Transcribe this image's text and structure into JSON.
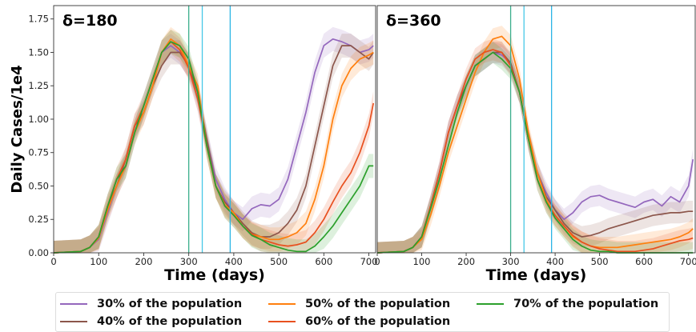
{
  "chart_data": [
    {
      "type": "line",
      "panel_title": "δ=180",
      "xlabel": "Time (days)",
      "ylabel": "Daily Cases/1e4",
      "xlim": [
        0,
        715
      ],
      "ylim": [
        0,
        1.85
      ],
      "xticks": [
        "0",
        "100",
        "200",
        "300",
        "400",
        "500",
        "600",
        "700"
      ],
      "yticks": [
        "0.00",
        "0.25",
        "0.50",
        "0.75",
        "1.00",
        "1.25",
        "1.50",
        "1.75"
      ],
      "vlines": [
        {
          "x": 300,
          "color": "#3aae8c"
        },
        {
          "x": 330,
          "color": "#47c8e8"
        },
        {
          "x": 392,
          "color": "#2ab5e5"
        }
      ],
      "series": [
        {
          "name": "30% of the population",
          "color": "#9467bd",
          "band": 0.09,
          "x": [
            0,
            60,
            80,
            100,
            120,
            140,
            160,
            180,
            200,
            220,
            240,
            260,
            280,
            300,
            320,
            340,
            360,
            380,
            400,
            420,
            440,
            460,
            480,
            500,
            520,
            540,
            560,
            580,
            600,
            620,
            640,
            660,
            680,
            700,
            710
          ],
          "y": [
            0,
            0.01,
            0.04,
            0.1,
            0.3,
            0.5,
            0.65,
            0.9,
            1.1,
            1.3,
            1.5,
            1.55,
            1.5,
            1.4,
            1.15,
            0.85,
            0.55,
            0.4,
            0.3,
            0.25,
            0.33,
            0.36,
            0.35,
            0.4,
            0.55,
            0.8,
            1.05,
            1.35,
            1.55,
            1.6,
            1.58,
            1.55,
            1.5,
            1.52,
            1.55
          ]
        },
        {
          "name": "40% of the population",
          "color": "#8c564b",
          "band": 0.09,
          "x": [
            0,
            60,
            80,
            100,
            120,
            140,
            160,
            180,
            200,
            220,
            240,
            260,
            280,
            300,
            320,
            340,
            360,
            380,
            400,
            420,
            440,
            460,
            480,
            500,
            520,
            540,
            560,
            580,
            600,
            620,
            640,
            660,
            680,
            700,
            710
          ],
          "y": [
            0,
            0.01,
            0.04,
            0.12,
            0.35,
            0.5,
            0.7,
            0.95,
            1.05,
            1.25,
            1.4,
            1.5,
            1.5,
            1.4,
            1.2,
            0.85,
            0.5,
            0.38,
            0.3,
            0.22,
            0.15,
            0.12,
            0.12,
            0.15,
            0.22,
            0.32,
            0.5,
            0.8,
            1.1,
            1.4,
            1.55,
            1.55,
            1.5,
            1.45,
            1.5
          ]
        },
        {
          "name": "50% of the population",
          "color": "#ff7f0e",
          "band": 0.09,
          "x": [
            0,
            60,
            80,
            100,
            120,
            140,
            160,
            180,
            200,
            220,
            240,
            260,
            280,
            300,
            320,
            340,
            360,
            380,
            400,
            420,
            440,
            460,
            480,
            500,
            520,
            540,
            560,
            580,
            600,
            620,
            640,
            660,
            680,
            700,
            710
          ],
          "y": [
            0,
            0.01,
            0.04,
            0.11,
            0.32,
            0.5,
            0.65,
            0.9,
            1.05,
            1.25,
            1.5,
            1.6,
            1.55,
            1.4,
            1.25,
            0.8,
            0.5,
            0.36,
            0.3,
            0.2,
            0.14,
            0.12,
            0.1,
            0.1,
            0.12,
            0.15,
            0.22,
            0.4,
            0.65,
            1.0,
            1.25,
            1.38,
            1.45,
            1.48,
            1.5
          ]
        },
        {
          "name": "60% of the population",
          "color": "#e8501f",
          "band": 0.09,
          "x": [
            0,
            60,
            80,
            100,
            120,
            140,
            160,
            180,
            200,
            220,
            240,
            260,
            280,
            300,
            320,
            340,
            360,
            380,
            400,
            420,
            440,
            460,
            480,
            500,
            520,
            540,
            560,
            580,
            600,
            620,
            640,
            660,
            680,
            700,
            710
          ],
          "y": [
            0,
            0.01,
            0.04,
            0.12,
            0.35,
            0.55,
            0.7,
            0.95,
            1.1,
            1.3,
            1.5,
            1.58,
            1.52,
            1.38,
            1.15,
            0.8,
            0.5,
            0.35,
            0.28,
            0.2,
            0.14,
            0.1,
            0.08,
            0.06,
            0.05,
            0.06,
            0.08,
            0.15,
            0.25,
            0.38,
            0.5,
            0.6,
            0.75,
            0.95,
            1.12
          ]
        },
        {
          "name": "70% of the population",
          "color": "#2ca02c",
          "band": 0.09,
          "x": [
            0,
            60,
            80,
            100,
            120,
            140,
            160,
            180,
            200,
            220,
            240,
            260,
            280,
            300,
            320,
            340,
            360,
            380,
            400,
            420,
            440,
            460,
            480,
            500,
            520,
            540,
            560,
            580,
            600,
            620,
            640,
            660,
            680,
            700,
            710
          ],
          "y": [
            0,
            0.01,
            0.04,
            0.12,
            0.35,
            0.55,
            0.65,
            0.9,
            1.1,
            1.3,
            1.5,
            1.58,
            1.55,
            1.45,
            1.2,
            0.8,
            0.5,
            0.35,
            0.28,
            0.2,
            0.13,
            0.1,
            0.06,
            0.04,
            0.02,
            0.01,
            0.01,
            0.05,
            0.12,
            0.2,
            0.3,
            0.4,
            0.5,
            0.65,
            0.65
          ]
        }
      ]
    },
    {
      "type": "line",
      "panel_title": "δ=360",
      "xlabel": "Time (days)",
      "ylabel": "",
      "xlim": [
        0,
        715
      ],
      "ylim": [
        0,
        1.85
      ],
      "xticks": [
        "0",
        "100",
        "200",
        "300",
        "400",
        "500",
        "600",
        "700"
      ],
      "yticks": [],
      "vlines": [
        {
          "x": 300,
          "color": "#3aae8c"
        },
        {
          "x": 330,
          "color": "#47c8e8"
        },
        {
          "x": 392,
          "color": "#2ab5e5"
        }
      ],
      "series": [
        {
          "name": "30% of the population",
          "color": "#9467bd",
          "band": 0.08,
          "x": [
            0,
            60,
            80,
            100,
            120,
            140,
            160,
            180,
            200,
            220,
            240,
            260,
            280,
            300,
            320,
            340,
            360,
            380,
            400,
            420,
            440,
            460,
            480,
            500,
            520,
            540,
            560,
            580,
            600,
            620,
            640,
            660,
            680,
            700,
            710
          ],
          "y": [
            0,
            0.01,
            0.04,
            0.12,
            0.35,
            0.6,
            0.9,
            1.1,
            1.25,
            1.4,
            1.45,
            1.5,
            1.48,
            1.42,
            1.2,
            0.85,
            0.6,
            0.45,
            0.32,
            0.25,
            0.3,
            0.38,
            0.42,
            0.43,
            0.4,
            0.38,
            0.36,
            0.34,
            0.38,
            0.4,
            0.35,
            0.42,
            0.38,
            0.5,
            0.7
          ]
        },
        {
          "name": "40% of the population",
          "color": "#8c564b",
          "band": 0.08,
          "x": [
            0,
            60,
            80,
            100,
            120,
            140,
            160,
            180,
            200,
            220,
            240,
            260,
            280,
            300,
            320,
            340,
            360,
            380,
            400,
            420,
            440,
            460,
            480,
            500,
            520,
            540,
            560,
            580,
            600,
            620,
            640,
            660,
            680,
            700,
            710
          ],
          "y": [
            0,
            0.01,
            0.04,
            0.12,
            0.35,
            0.6,
            0.9,
            1.1,
            1.25,
            1.4,
            1.45,
            1.5,
            1.5,
            1.42,
            1.2,
            0.85,
            0.6,
            0.42,
            0.32,
            0.22,
            0.15,
            0.12,
            0.13,
            0.15,
            0.18,
            0.2,
            0.22,
            0.24,
            0.26,
            0.28,
            0.29,
            0.3,
            0.3,
            0.31,
            0.31
          ]
        },
        {
          "name": "50% of the population",
          "color": "#ff7f0e",
          "band": 0.08,
          "x": [
            0,
            60,
            80,
            100,
            120,
            140,
            160,
            180,
            200,
            220,
            240,
            260,
            280,
            300,
            320,
            340,
            360,
            380,
            400,
            420,
            440,
            460,
            480,
            500,
            520,
            540,
            560,
            580,
            600,
            620,
            640,
            660,
            680,
            700,
            710
          ],
          "y": [
            0,
            0.01,
            0.04,
            0.1,
            0.28,
            0.5,
            0.75,
            0.95,
            1.15,
            1.35,
            1.5,
            1.6,
            1.62,
            1.55,
            1.3,
            0.9,
            0.6,
            0.4,
            0.28,
            0.2,
            0.12,
            0.08,
            0.05,
            0.04,
            0.04,
            0.04,
            0.05,
            0.06,
            0.07,
            0.08,
            0.09,
            0.1,
            0.12,
            0.15,
            0.18
          ]
        },
        {
          "name": "60% of the population",
          "color": "#e8501f",
          "band": 0.08,
          "x": [
            0,
            60,
            80,
            100,
            120,
            140,
            160,
            180,
            200,
            220,
            240,
            260,
            280,
            300,
            320,
            340,
            360,
            380,
            400,
            420,
            440,
            460,
            480,
            500,
            520,
            540,
            560,
            580,
            600,
            620,
            640,
            660,
            680,
            700,
            710
          ],
          "y": [
            0,
            0.01,
            0.04,
            0.12,
            0.35,
            0.6,
            0.9,
            1.1,
            1.3,
            1.45,
            1.5,
            1.52,
            1.5,
            1.4,
            1.2,
            0.85,
            0.55,
            0.38,
            0.28,
            0.2,
            0.13,
            0.08,
            0.05,
            0.03,
            0.02,
            0.01,
            0.01,
            0.01,
            0.02,
            0.03,
            0.05,
            0.07,
            0.09,
            0.1,
            0.11
          ]
        },
        {
          "name": "70% of the population",
          "color": "#2ca02c",
          "band": 0.08,
          "x": [
            0,
            60,
            80,
            100,
            120,
            140,
            160,
            180,
            200,
            220,
            240,
            260,
            280,
            300,
            320,
            340,
            360,
            380,
            400,
            420,
            440,
            460,
            480,
            500,
            520,
            540,
            560,
            580,
            600,
            620,
            640,
            660,
            680,
            700,
            710
          ],
          "y": [
            0,
            0.01,
            0.04,
            0.12,
            0.33,
            0.55,
            0.8,
            1.05,
            1.25,
            1.4,
            1.45,
            1.5,
            1.45,
            1.38,
            1.2,
            0.85,
            0.55,
            0.38,
            0.26,
            0.18,
            0.1,
            0.05,
            0.02,
            0.01,
            0.01,
            0,
            0,
            0,
            0,
            0,
            0,
            0,
            0,
            0,
            0
          ]
        }
      ]
    }
  ],
  "legend": {
    "placement": "bottom",
    "items": [
      {
        "label": "30% of the population",
        "color": "#9467bd"
      },
      {
        "label": "40% of the population",
        "color": "#8c564b"
      },
      {
        "label": "50% of the population",
        "color": "#ff7f0e"
      },
      {
        "label": "60% of the population",
        "color": "#e8501f"
      },
      {
        "label": "70% of the population",
        "color": "#2ca02c"
      }
    ]
  }
}
